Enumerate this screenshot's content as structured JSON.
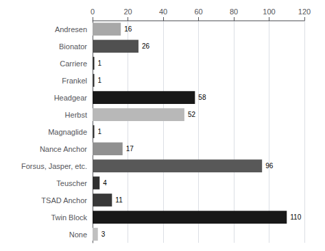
{
  "chart_data": {
    "type": "bar",
    "orientation": "horizontal",
    "categories": [
      "Andresen",
      "Bionator",
      "Carriere",
      "Frankel",
      "Headgear",
      "Herbst",
      "Magnaglide",
      "Nance Anchor",
      "Forsus, Jasper, etc.",
      "Teuscher",
      "TSAD Anchor",
      "Twin Block",
      "None"
    ],
    "values": [
      16,
      26,
      1,
      1,
      58,
      52,
      1,
      17,
      96,
      4,
      11,
      110,
      3
    ],
    "colors": [
      "#a8a8a8",
      "#505050",
      "#303030",
      "#383838",
      "#181818",
      "#b8b8b8",
      "#383838",
      "#909090",
      "#585858",
      "#303030",
      "#383838",
      "#181818",
      "#c0c0c0"
    ],
    "xlim": [
      0,
      120
    ],
    "xticks": [
      0,
      20,
      40,
      60,
      80,
      100,
      120
    ],
    "grid": true,
    "data_labels": true
  }
}
